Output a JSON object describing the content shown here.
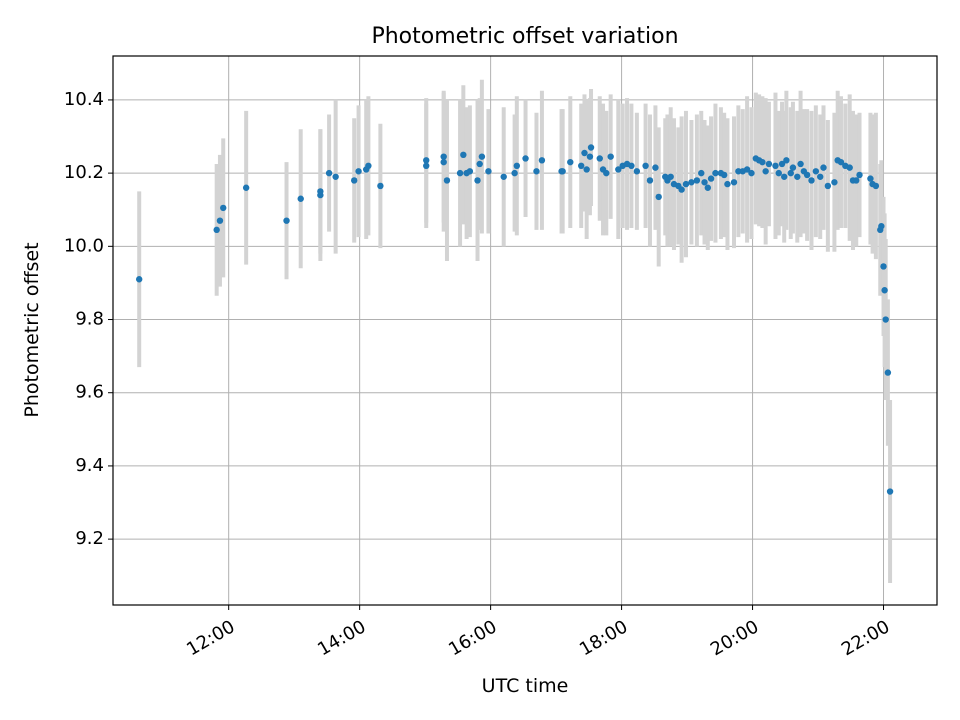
{
  "chart_data": {
    "type": "scatter",
    "title": "Photometric offset variation",
    "xlabel": "UTC time",
    "ylabel": "Photometric offset",
    "x_unit": "hours UTC",
    "x_ticks": [
      "12:00",
      "14:00",
      "16:00",
      "18:00",
      "20:00",
      "22:00"
    ],
    "y_ticks": [
      "9.2",
      "9.4",
      "9.6",
      "9.8",
      "10.0",
      "10.2",
      "10.4"
    ],
    "xlim": [
      "10:14",
      "22:49"
    ],
    "ylim": [
      9.02,
      10.52
    ],
    "grid": true,
    "errorbars": true,
    "colors": {
      "point": "#1f77b4",
      "errorbar": "#d3d3d3",
      "grid": "#b0b0b0"
    },
    "points": [
      {
        "x": "10:38",
        "y": 9.91,
        "err": 0.24
      },
      {
        "x": "11:49",
        "y": 10.045,
        "err": 0.18
      },
      {
        "x": "11:52",
        "y": 10.07,
        "err": 0.18
      },
      {
        "x": "11:55",
        "y": 10.105,
        "err": 0.19
      },
      {
        "x": "12:16",
        "y": 10.16,
        "err": 0.21
      },
      {
        "x": "12:53",
        "y": 10.07,
        "err": 0.16
      },
      {
        "x": "13:06",
        "y": 10.13,
        "err": 0.19
      },
      {
        "x": "13:24",
        "y": 10.14,
        "err": 0.18
      },
      {
        "x": "13:24",
        "y": 10.15,
        "err": 0.17
      },
      {
        "x": "13:32",
        "y": 10.2,
        "err": 0.16
      },
      {
        "x": "13:38",
        "y": 10.19,
        "err": 0.21
      },
      {
        "x": "13:55",
        "y": 10.18,
        "err": 0.17
      },
      {
        "x": "13:59",
        "y": 10.205,
        "err": 0.18
      },
      {
        "x": "14:06",
        "y": 10.21,
        "err": 0.19
      },
      {
        "x": "14:08",
        "y": 10.22,
        "err": 0.19
      },
      {
        "x": "14:19",
        "y": 10.165,
        "err": 0.17
      },
      {
        "x": "15:01",
        "y": 10.22,
        "err": 0.17
      },
      {
        "x": "15:01",
        "y": 10.235,
        "err": 0.17
      },
      {
        "x": "15:17",
        "y": 10.23,
        "err": 0.19
      },
      {
        "x": "15:17",
        "y": 10.245,
        "err": 0.18
      },
      {
        "x": "15:20",
        "y": 10.18,
        "err": 0.22
      },
      {
        "x": "15:32",
        "y": 10.2,
        "err": 0.2
      },
      {
        "x": "15:35",
        "y": 10.25,
        "err": 0.19
      },
      {
        "x": "15:38",
        "y": 10.2,
        "err": 0.18
      },
      {
        "x": "15:41",
        "y": 10.205,
        "err": 0.18
      },
      {
        "x": "15:48",
        "y": 10.18,
        "err": 0.22
      },
      {
        "x": "15:50",
        "y": 10.225,
        "err": 0.18
      },
      {
        "x": "15:52",
        "y": 10.245,
        "err": 0.21
      },
      {
        "x": "15:58",
        "y": 10.205,
        "err": 0.17
      },
      {
        "x": "16:12",
        "y": 10.19,
        "err": 0.19
      },
      {
        "x": "16:22",
        "y": 10.2,
        "err": 0.16
      },
      {
        "x": "16:24",
        "y": 10.22,
        "err": 0.19
      },
      {
        "x": "16:32",
        "y": 10.24,
        "err": 0.16
      },
      {
        "x": "16:42",
        "y": 10.205,
        "err": 0.16
      },
      {
        "x": "16:47",
        "y": 10.235,
        "err": 0.19
      },
      {
        "x": "17:05",
        "y": 10.205,
        "err": 0.17
      },
      {
        "x": "17:06",
        "y": 10.205,
        "err": 0.17
      },
      {
        "x": "17:13",
        "y": 10.23,
        "err": 0.18
      },
      {
        "x": "17:23",
        "y": 10.22,
        "err": 0.17
      },
      {
        "x": "17:26",
        "y": 10.255,
        "err": 0.16
      },
      {
        "x": "17:28",
        "y": 10.21,
        "err": 0.19
      },
      {
        "x": "17:31",
        "y": 10.245,
        "err": 0.16
      },
      {
        "x": "17:32",
        "y": 10.27,
        "err": 0.16
      },
      {
        "x": "17:40",
        "y": 10.24,
        "err": 0.17
      },
      {
        "x": "17:43",
        "y": 10.21,
        "err": 0.18
      },
      {
        "x": "17:46",
        "y": 10.2,
        "err": 0.17
      },
      {
        "x": "17:50",
        "y": 10.245,
        "err": 0.17
      },
      {
        "x": "17:57",
        "y": 10.21,
        "err": 0.19
      },
      {
        "x": "18:01",
        "y": 10.22,
        "err": 0.17
      },
      {
        "x": "18:05",
        "y": 10.225,
        "err": 0.18
      },
      {
        "x": "18:09",
        "y": 10.22,
        "err": 0.17
      },
      {
        "x": "18:14",
        "y": 10.205,
        "err": 0.16
      },
      {
        "x": "18:22",
        "y": 10.22,
        "err": 0.17
      },
      {
        "x": "18:26",
        "y": 10.18,
        "err": 0.18
      },
      {
        "x": "18:31",
        "y": 10.215,
        "err": 0.17
      },
      {
        "x": "18:34",
        "y": 10.135,
        "err": 0.19
      },
      {
        "x": "18:40",
        "y": 10.19,
        "err": 0.16
      },
      {
        "x": "18:42",
        "y": 10.18,
        "err": 0.18
      },
      {
        "x": "18:45",
        "y": 10.19,
        "err": 0.19
      },
      {
        "x": "18:48",
        "y": 10.17,
        "err": 0.18
      },
      {
        "x": "18:52",
        "y": 10.165,
        "err": 0.16
      },
      {
        "x": "18:55",
        "y": 10.155,
        "err": 0.2
      },
      {
        "x": "18:59",
        "y": 10.17,
        "err": 0.2
      },
      {
        "x": "19:04",
        "y": 10.175,
        "err": 0.17
      },
      {
        "x": "19:09",
        "y": 10.18,
        "err": 0.18
      },
      {
        "x": "19:13",
        "y": 10.2,
        "err": 0.17
      },
      {
        "x": "19:16",
        "y": 10.175,
        "err": 0.17
      },
      {
        "x": "19:19",
        "y": 10.16,
        "err": 0.17
      },
      {
        "x": "19:22",
        "y": 10.185,
        "err": 0.17
      },
      {
        "x": "19:26",
        "y": 10.2,
        "err": 0.19
      },
      {
        "x": "19:31",
        "y": 10.2,
        "err": 0.18
      },
      {
        "x": "19:34",
        "y": 10.195,
        "err": 0.17
      },
      {
        "x": "19:37",
        "y": 10.17,
        "err": 0.18
      },
      {
        "x": "19:43",
        "y": 10.175,
        "err": 0.18
      },
      {
        "x": "19:47",
        "y": 10.205,
        "err": 0.18
      },
      {
        "x": "19:51",
        "y": 10.205,
        "err": 0.17
      },
      {
        "x": "19:55",
        "y": 10.21,
        "err": 0.2
      },
      {
        "x": "19:59",
        "y": 10.2,
        "err": 0.18
      },
      {
        "x": "20:03",
        "y": 10.24,
        "err": 0.18
      },
      {
        "x": "20:06",
        "y": 10.235,
        "err": 0.18
      },
      {
        "x": "20:09",
        "y": 10.23,
        "err": 0.18
      },
      {
        "x": "20:12",
        "y": 10.205,
        "err": 0.2
      },
      {
        "x": "20:15",
        "y": 10.225,
        "err": 0.17
      },
      {
        "x": "20:21",
        "y": 10.22,
        "err": 0.2
      },
      {
        "x": "20:24",
        "y": 10.2,
        "err": 0.17
      },
      {
        "x": "20:27",
        "y": 10.225,
        "err": 0.17
      },
      {
        "x": "20:29",
        "y": 10.19,
        "err": 0.18
      },
      {
        "x": "20:31",
        "y": 10.235,
        "err": 0.19
      },
      {
        "x": "20:35",
        "y": 10.2,
        "err": 0.18
      },
      {
        "x": "20:37",
        "y": 10.215,
        "err": 0.18
      },
      {
        "x": "20:41",
        "y": 10.19,
        "err": 0.18
      },
      {
        "x": "20:44",
        "y": 10.225,
        "err": 0.2
      },
      {
        "x": "20:47",
        "y": 10.205,
        "err": 0.17
      },
      {
        "x": "20:50",
        "y": 10.195,
        "err": 0.18
      },
      {
        "x": "20:54",
        "y": 10.18,
        "err": 0.19
      },
      {
        "x": "20:58",
        "y": 10.205,
        "err": 0.18
      },
      {
        "x": "21:02",
        "y": 10.19,
        "err": 0.17
      },
      {
        "x": "21:05",
        "y": 10.215,
        "err": 0.17
      },
      {
        "x": "21:09",
        "y": 10.165,
        "err": 0.18
      },
      {
        "x": "21:15",
        "y": 10.175,
        "err": 0.19
      },
      {
        "x": "21:18",
        "y": 10.235,
        "err": 0.19
      },
      {
        "x": "21:21",
        "y": 10.23,
        "err": 0.18
      },
      {
        "x": "21:25",
        "y": 10.22,
        "err": 0.17
      },
      {
        "x": "21:29",
        "y": 10.215,
        "err": 0.2
      },
      {
        "x": "21:32",
        "y": 10.18,
        "err": 0.19
      },
      {
        "x": "21:35",
        "y": 10.18,
        "err": 0.18
      },
      {
        "x": "21:38",
        "y": 10.195,
        "err": 0.17
      },
      {
        "x": "21:48",
        "y": 10.185,
        "err": 0.18
      },
      {
        "x": "21:50",
        "y": 10.17,
        "err": 0.19
      },
      {
        "x": "21:53",
        "y": 10.165,
        "err": 0.2
      },
      {
        "x": "21:57",
        "y": 10.045,
        "err": 0.18
      },
      {
        "x": "21:58",
        "y": 10.055,
        "err": 0.18
      },
      {
        "x": "22:00",
        "y": 9.945,
        "err": 0.19
      },
      {
        "x": "22:01",
        "y": 9.88,
        "err": 0.21
      },
      {
        "x": "22:02",
        "y": 9.8,
        "err": 0.22
      },
      {
        "x": "22:04",
        "y": 9.655,
        "err": 0.2
      },
      {
        "x": "22:06",
        "y": 9.33,
        "err": 0.25
      }
    ]
  }
}
